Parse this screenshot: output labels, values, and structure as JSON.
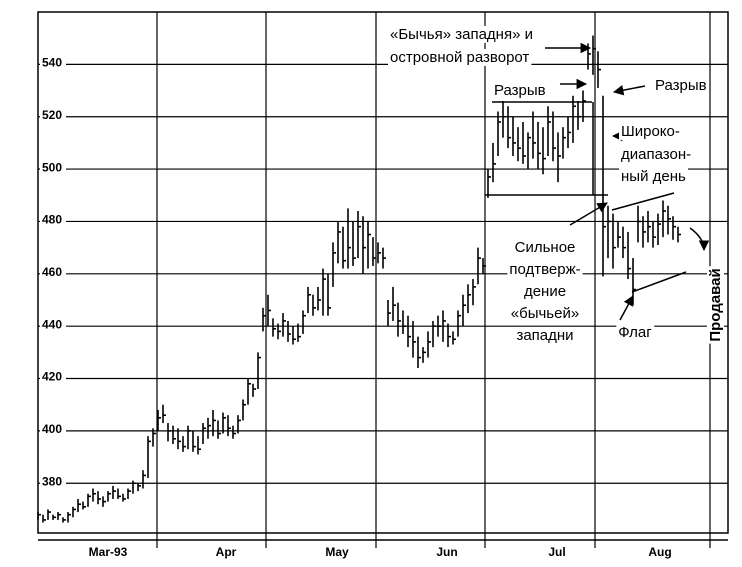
{
  "chart_data": {
    "type": "ohlc",
    "x": [
      0,
      1,
      2,
      3,
      4,
      5,
      6,
      7,
      8,
      9,
      10,
      11,
      12,
      13,
      14,
      15,
      16,
      17,
      18,
      19,
      20,
      21,
      22,
      23,
      24,
      25,
      26,
      27,
      28,
      29,
      30,
      31,
      32,
      33,
      34,
      35,
      36,
      37,
      38,
      39,
      40,
      41,
      42,
      43,
      44,
      45,
      46,
      47,
      48,
      49,
      50,
      51,
      52,
      53,
      54,
      55,
      56,
      57,
      58,
      59,
      60,
      61,
      62,
      63,
      64,
      65,
      66,
      67,
      68,
      69,
      70,
      71,
      72,
      73,
      74,
      75,
      76,
      77,
      78,
      79,
      80,
      81,
      82,
      83,
      84,
      85,
      86,
      87,
      88,
      89,
      90,
      91,
      92,
      93,
      94,
      95,
      96,
      97,
      98,
      99,
      100,
      101,
      102,
      103,
      104,
      105,
      106,
      107,
      108,
      109,
      110,
      111,
      112,
      113,
      114,
      115,
      116,
      117,
      118,
      119,
      120,
      121,
      122,
      123,
      124,
      125,
      126,
      127,
      128
    ],
    "high": [
      369,
      368,
      370,
      368,
      369,
      367,
      369,
      371,
      374,
      373,
      376,
      378,
      377,
      375,
      377,
      379,
      378,
      376,
      378,
      381,
      380,
      385,
      398,
      401,
      408,
      410,
      403,
      402,
      401,
      398,
      402,
      400,
      398,
      403,
      405,
      408,
      404,
      407,
      406,
      402,
      406,
      412,
      420,
      418,
      430,
      447,
      452,
      443,
      441,
      445,
      442,
      440,
      441,
      446,
      455,
      452,
      455,
      462,
      460,
      472,
      480,
      478,
      485,
      480,
      484,
      482,
      480,
      474,
      472,
      470,
      450,
      455,
      449,
      446,
      444,
      442,
      436,
      432,
      438,
      442,
      444,
      446,
      441,
      438,
      446,
      452,
      456,
      458,
      470,
      466,
      500,
      510,
      522,
      526,
      524,
      520,
      516,
      518,
      514,
      522,
      518,
      516,
      524,
      522,
      514,
      516,
      520,
      528,
      526,
      530,
      548,
      551,
      545,
      528,
      486,
      483,
      480,
      478,
      476,
      466,
      486,
      482,
      484,
      480,
      483,
      488,
      486,
      482,
      478
    ],
    "low": [
      366,
      365,
      366,
      366,
      366,
      365,
      365,
      367,
      369,
      370,
      371,
      373,
      372,
      371,
      373,
      374,
      374,
      373,
      374,
      376,
      377,
      378,
      382,
      394,
      400,
      403,
      396,
      395,
      393,
      392,
      393,
      392,
      391,
      395,
      397,
      398,
      397,
      399,
      398,
      397,
      399,
      404,
      410,
      413,
      416,
      438,
      440,
      436,
      435,
      436,
      434,
      433,
      434,
      437,
      445,
      444,
      446,
      444,
      444,
      455,
      464,
      462,
      462,
      463,
      466,
      460,
      462,
      463,
      464,
      462,
      440,
      442,
      436,
      437,
      432,
      428,
      424,
      426,
      428,
      432,
      436,
      434,
      432,
      433,
      436,
      440,
      445,
      448,
      456,
      460,
      489,
      495,
      505,
      512,
      508,
      505,
      503,
      502,
      500,
      504,
      500,
      498,
      505,
      503,
      495,
      504,
      508,
      510,
      515,
      518,
      538,
      536,
      531,
      459,
      466,
      462,
      470,
      466,
      458,
      448,
      472,
      470,
      472,
      470,
      471,
      474,
      475,
      473,
      472
    ],
    "close": [
      368,
      366,
      369,
      367,
      368,
      366,
      368,
      370,
      372,
      371,
      375,
      376,
      374,
      373,
      376,
      377,
      375,
      374,
      377,
      380,
      379,
      383,
      396,
      399,
      405,
      406,
      400,
      397,
      396,
      394,
      400,
      394,
      393,
      401,
      402,
      404,
      399,
      405,
      401,
      399,
      404,
      410,
      418,
      416,
      428,
      444,
      446,
      439,
      438,
      442,
      437,
      435,
      436,
      444,
      452,
      447,
      450,
      458,
      447,
      468,
      476,
      465,
      470,
      466,
      478,
      470,
      475,
      466,
      468,
      466,
      445,
      448,
      442,
      440,
      436,
      434,
      428,
      430,
      434,
      440,
      440,
      442,
      436,
      435,
      444,
      448,
      452,
      455,
      466,
      463,
      497,
      502,
      518,
      520,
      512,
      510,
      508,
      505,
      512,
      510,
      506,
      504,
      518,
      508,
      505,
      512,
      514,
      524,
      520,
      526,
      544,
      546,
      538,
      478,
      480,
      470,
      474,
      470,
      462,
      454,
      480,
      476,
      478,
      474,
      479,
      484,
      481,
      478,
      475
    ],
    "xlim": [
      0,
      138
    ],
    "ylim": [
      361,
      560
    ],
    "yticks": [
      380,
      400,
      420,
      440,
      460,
      480,
      500,
      520,
      540
    ],
    "xticks": [
      {
        "value": 14,
        "label": "Mar-93"
      },
      {
        "value": 37.6,
        "label": "Apr"
      },
      {
        "value": 59.8,
        "label": "May"
      },
      {
        "value": 81.8,
        "label": "Jun"
      },
      {
        "value": 103.8,
        "label": "Jul"
      },
      {
        "value": 124.4,
        "label": "Aug"
      }
    ],
    "xgrid": [
      23.8,
      45.6,
      67.6,
      89.4,
      111.4,
      134.4
    ],
    "grid": true,
    "color": "#000000",
    "annotations": [
      "«Бычья» западня» и",
      "островной разворот",
      "Разрыв",
      "Разрыв",
      "Широко-",
      "диапазон-",
      "ный день",
      "Сильное",
      "подтверж-",
      "дение",
      "«бычьей»",
      "западни",
      "Флаг",
      "Продавай"
    ]
  }
}
